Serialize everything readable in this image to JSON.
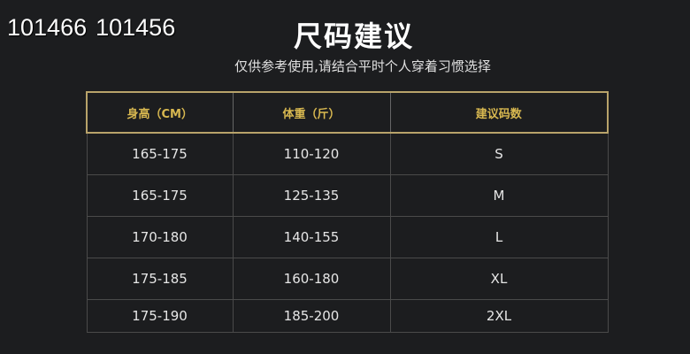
{
  "watermark": {
    "text_a": "101466",
    "text_b": "101456"
  },
  "title": "尺码建议",
  "subtitle": "仅供参考使用,请结合平时个人穿着习惯选择",
  "table": {
    "headers": [
      "身高（CM）",
      "体重（斤）",
      "建议码数"
    ],
    "rows": [
      [
        "165-175",
        "110-120",
        "S"
      ],
      [
        "165-175",
        "125-135",
        "M"
      ],
      [
        "170-180",
        "140-155",
        "L"
      ],
      [
        "175-185",
        "160-180",
        "XL"
      ],
      [
        "175-190",
        "185-200",
        "2XL"
      ]
    ]
  },
  "colors": {
    "background": "#1c1d1f",
    "header_text": "#d8b850",
    "border_gold": "#b8a36a"
  }
}
